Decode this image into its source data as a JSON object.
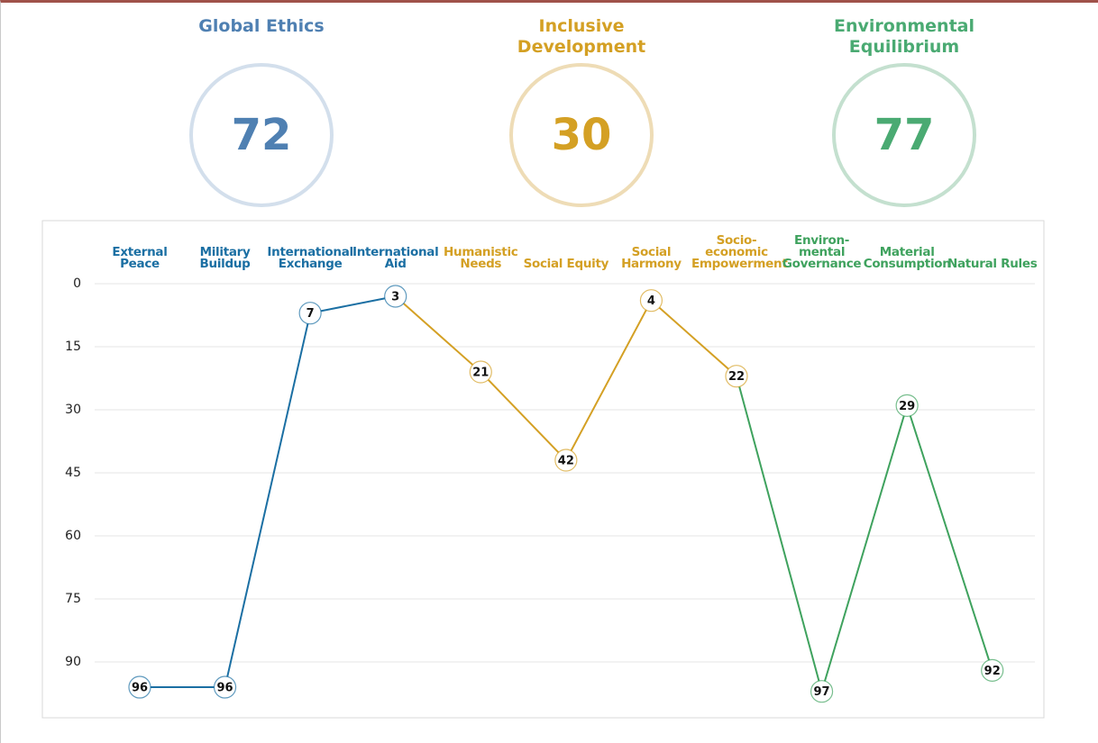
{
  "scores": [
    {
      "label": "Global Ethics",
      "value": 72,
      "color": "#4f80b2",
      "ring_color": "#d3dfec"
    },
    {
      "label": "Inclusive Development",
      "value": 30,
      "color": "#d4a024",
      "ring_color": "#eedcb6"
    },
    {
      "label": "Environmental Equilibrium",
      "value": 77,
      "color": "#4aaa72",
      "ring_color": "#c4e0cf"
    }
  ],
  "chart_data": {
    "type": "line",
    "categories": [
      "External Peace",
      "Military Buildup",
      "International Exchange",
      "International Aid",
      "Humanistic Needs",
      "Social Equity",
      "Social Harmony",
      "Socio-economic Empowerment",
      "Environ-mental Governance",
      "Material Consumption",
      "Natural Rules"
    ],
    "values": [
      96,
      96,
      7,
      3,
      21,
      42,
      4,
      22,
      97,
      29,
      92
    ],
    "colors": [
      "#1b6fa3",
      "#1b6fa3",
      "#1b6fa3",
      "#1b6fa3",
      "#d4a024",
      "#d4a024",
      "#d4a024",
      "#d4a024",
      "#3fa25e",
      "#3fa25e",
      "#3fa25e"
    ],
    "ylim": [
      0,
      100
    ],
    "yticks": [
      0,
      15,
      30,
      45,
      60,
      75,
      90
    ],
    "inverted": true,
    "grid": true
  }
}
